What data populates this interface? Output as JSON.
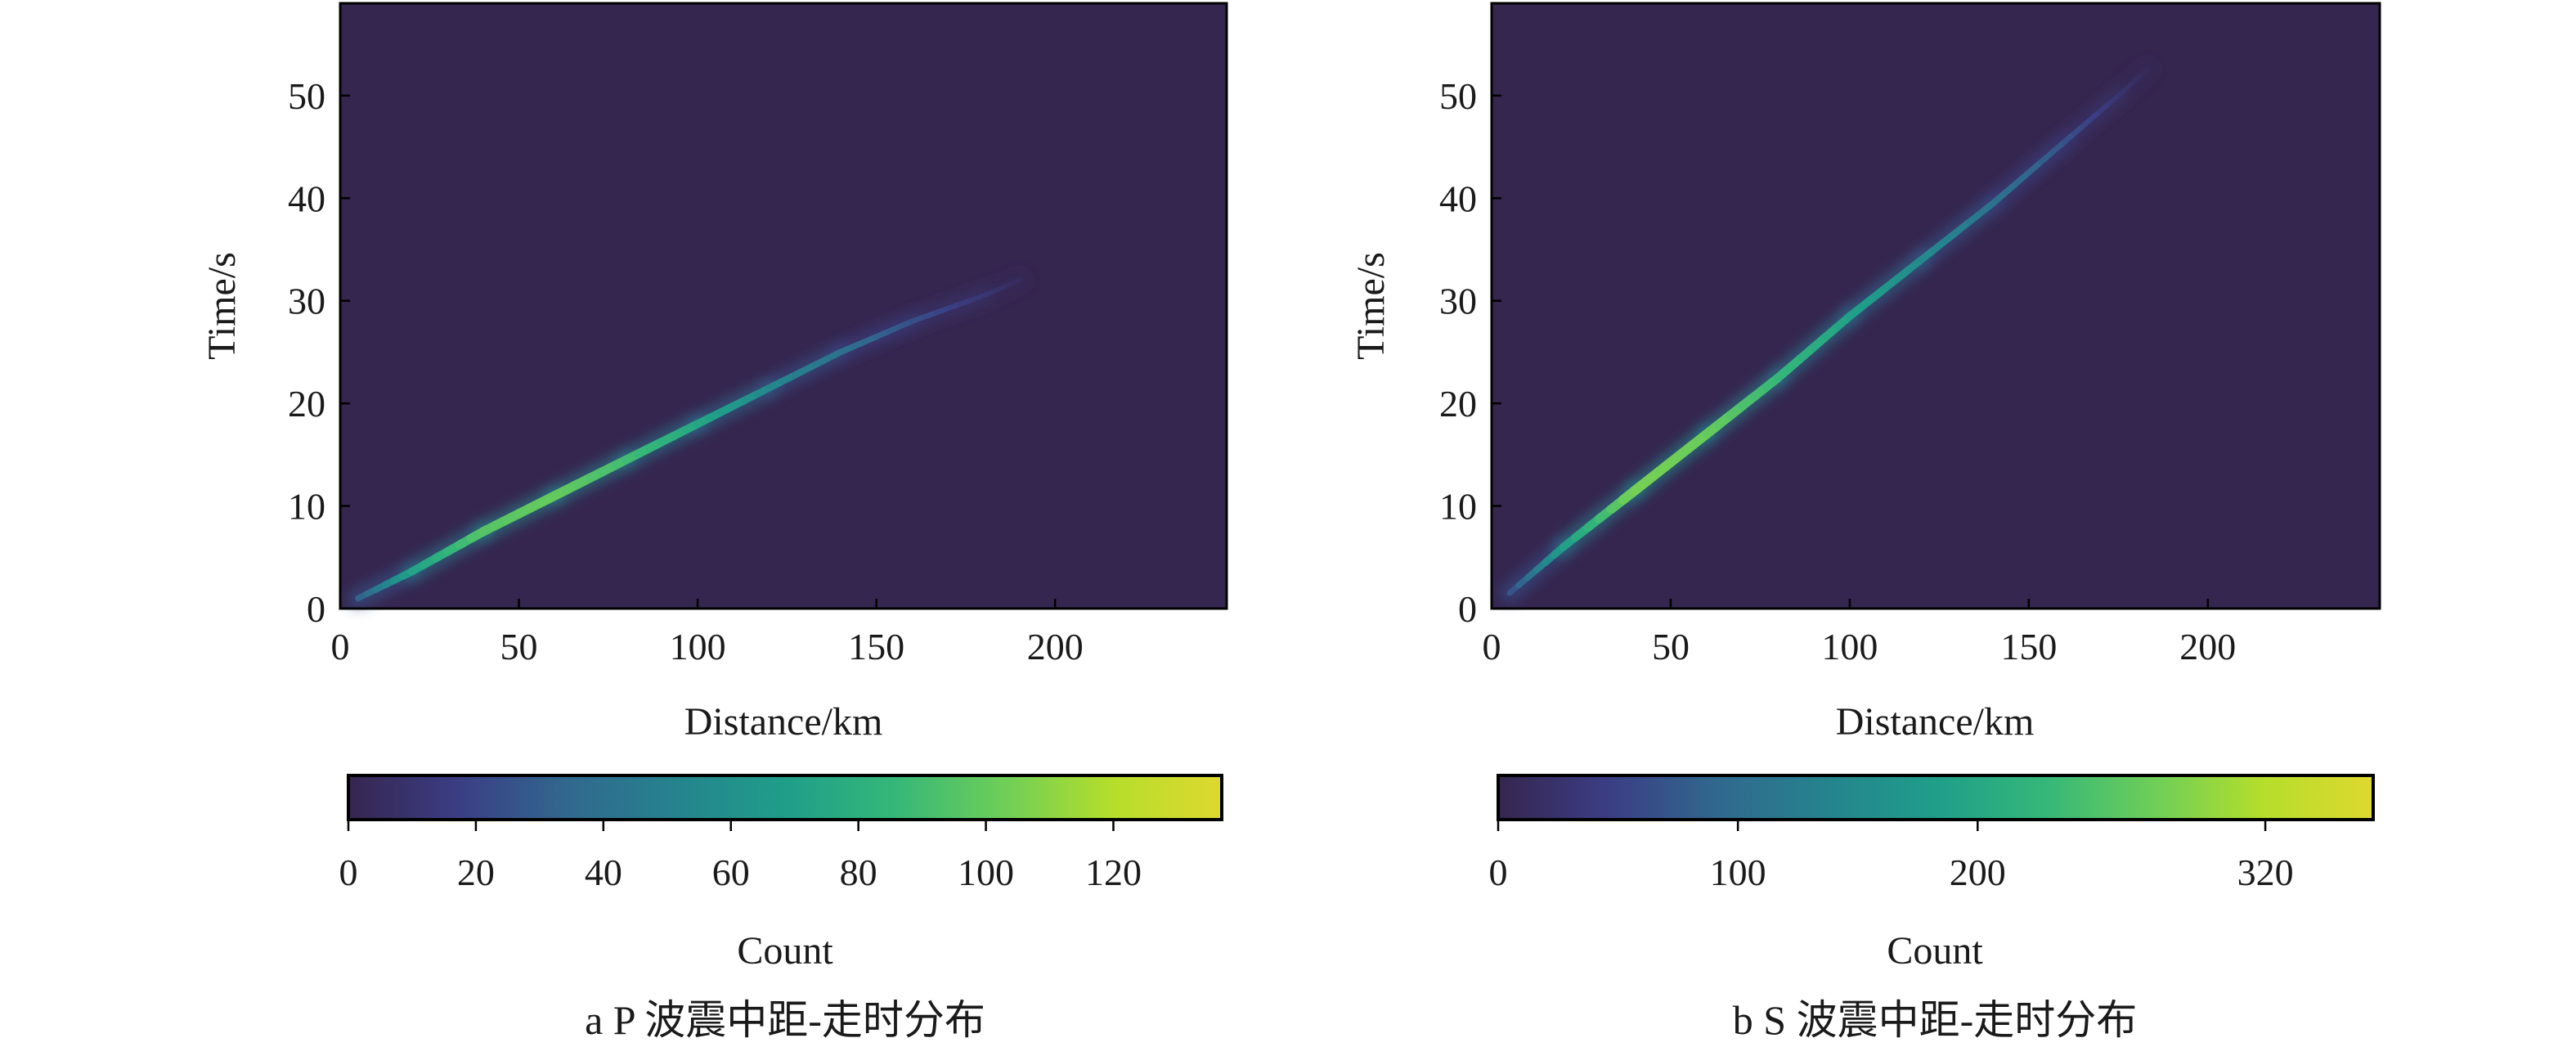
{
  "colors": {
    "background": "#35264f",
    "colormap": [
      "#35264f",
      "#3b3d84",
      "#31688e",
      "#25838e",
      "#1f9e89",
      "#35b779",
      "#6ece58",
      "#b5de2b",
      "#dfd830"
    ]
  },
  "chart_data": [
    {
      "type": "heatmap",
      "caption": "a P 波震中距-走时分布",
      "xlabel": "Distance/km",
      "ylabel": "Time/s",
      "xlim": [
        0,
        248
      ],
      "ylim": [
        0,
        59
      ],
      "xticks": [
        0,
        50,
        100,
        150,
        200
      ],
      "yticks": [
        0,
        10,
        20,
        30,
        40,
        50
      ],
      "colorbar": {
        "label": "Count",
        "min": 0,
        "max": 137,
        "ticks": [
          0,
          20,
          40,
          60,
          80,
          100,
          120
        ]
      },
      "band": [
        {
          "x": 5,
          "y": 1.0,
          "count": 30
        },
        {
          "x": 20,
          "y": 3.6,
          "count": 70
        },
        {
          "x": 40,
          "y": 7.5,
          "count": 95
        },
        {
          "x": 60,
          "y": 11.0,
          "count": 100
        },
        {
          "x": 80,
          "y": 14.5,
          "count": 90
        },
        {
          "x": 100,
          "y": 18.0,
          "count": 75
        },
        {
          "x": 120,
          "y": 21.5,
          "count": 55
        },
        {
          "x": 140,
          "y": 25.0,
          "count": 40
        },
        {
          "x": 160,
          "y": 28.0,
          "count": 25
        },
        {
          "x": 180,
          "y": 30.5,
          "count": 12
        },
        {
          "x": 190,
          "y": 32.0,
          "count": 4
        }
      ]
    },
    {
      "type": "heatmap",
      "caption": "b S 波震中距-走时分布",
      "xlabel": "Distance/km",
      "ylabel": "Time/s",
      "xlim": [
        0,
        248
      ],
      "ylim": [
        0,
        59
      ],
      "xticks": [
        0,
        50,
        100,
        150,
        200
      ],
      "yticks": [
        0,
        10,
        20,
        30,
        40,
        50
      ],
      "colorbar": {
        "label": "Count",
        "min": 0,
        "max": 365,
        "ticks": [
          0,
          100,
          200,
          320
        ]
      },
      "band": [
        {
          "x": 5,
          "y": 1.5,
          "count": 60
        },
        {
          "x": 20,
          "y": 6.0,
          "count": 180
        },
        {
          "x": 40,
          "y": 11.5,
          "count": 280
        },
        {
          "x": 60,
          "y": 17.0,
          "count": 270
        },
        {
          "x": 80,
          "y": 22.5,
          "count": 230
        },
        {
          "x": 100,
          "y": 28.5,
          "count": 190
        },
        {
          "x": 120,
          "y": 34.0,
          "count": 150
        },
        {
          "x": 140,
          "y": 39.5,
          "count": 110
        },
        {
          "x": 160,
          "y": 45.5,
          "count": 70
        },
        {
          "x": 175,
          "y": 50.0,
          "count": 30
        },
        {
          "x": 183,
          "y": 52.5,
          "count": 8
        }
      ]
    }
  ]
}
